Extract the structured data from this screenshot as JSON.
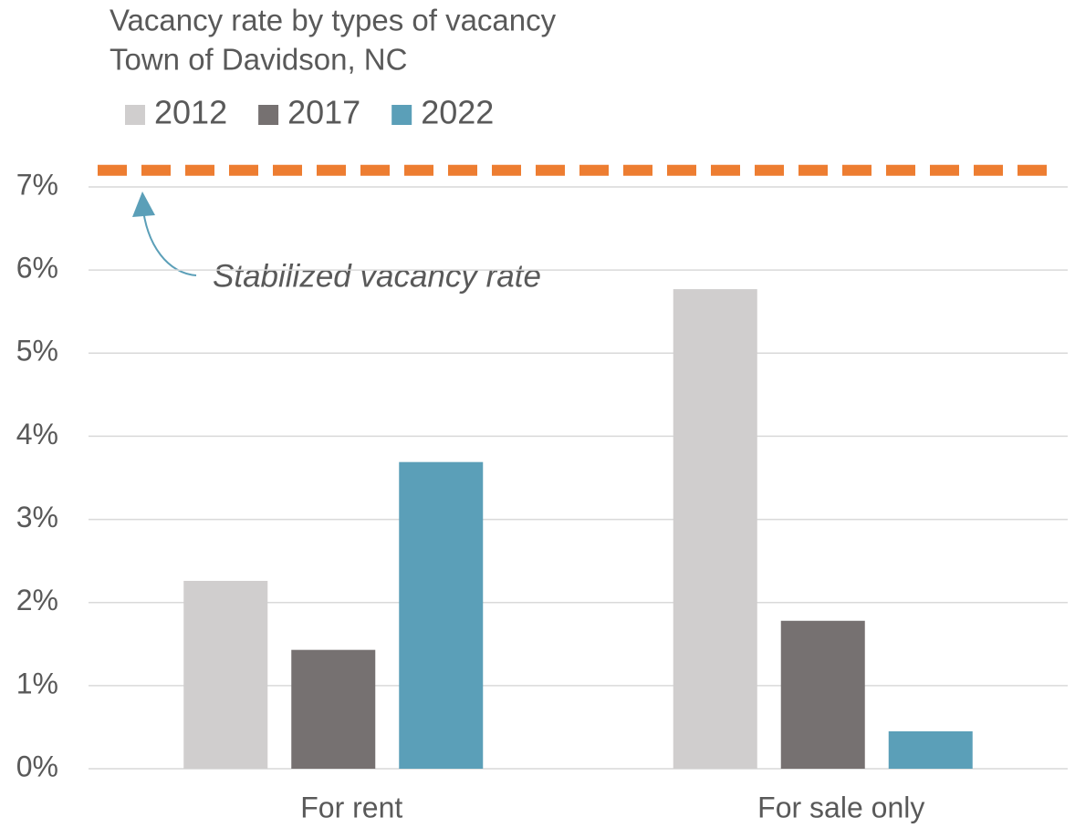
{
  "chart_data": {
    "type": "bar",
    "title": "Vacancy rate by types of vacancy",
    "subtitle": "Town of Davidson, NC",
    "categories": [
      "For rent",
      "For sale only"
    ],
    "series": [
      {
        "name": "2012",
        "color": "#d0cece",
        "values": [
          2.26,
          5.77
        ]
      },
      {
        "name": "2017",
        "color": "#767171",
        "values": [
          1.43,
          1.78
        ]
      },
      {
        "name": "2022",
        "color": "#5b9fb8",
        "values": [
          3.69,
          0.45
        ]
      }
    ],
    "ylim": [
      0,
      7
    ],
    "yticks": [
      {
        "value": 0,
        "label": "0%"
      },
      {
        "value": 1,
        "label": "1%"
      },
      {
        "value": 2,
        "label": "2%"
      },
      {
        "value": 3,
        "label": "3%"
      },
      {
        "value": 4,
        "label": "4%"
      },
      {
        "value": 5,
        "label": "5%"
      },
      {
        "value": 6,
        "label": "6%"
      },
      {
        "value": 7,
        "label": "7%"
      }
    ],
    "grid": true,
    "legend": "top-left",
    "reference_line": {
      "value": 7.2,
      "label": "Stabilized vacancy rate",
      "color": "#ed7d31"
    }
  }
}
